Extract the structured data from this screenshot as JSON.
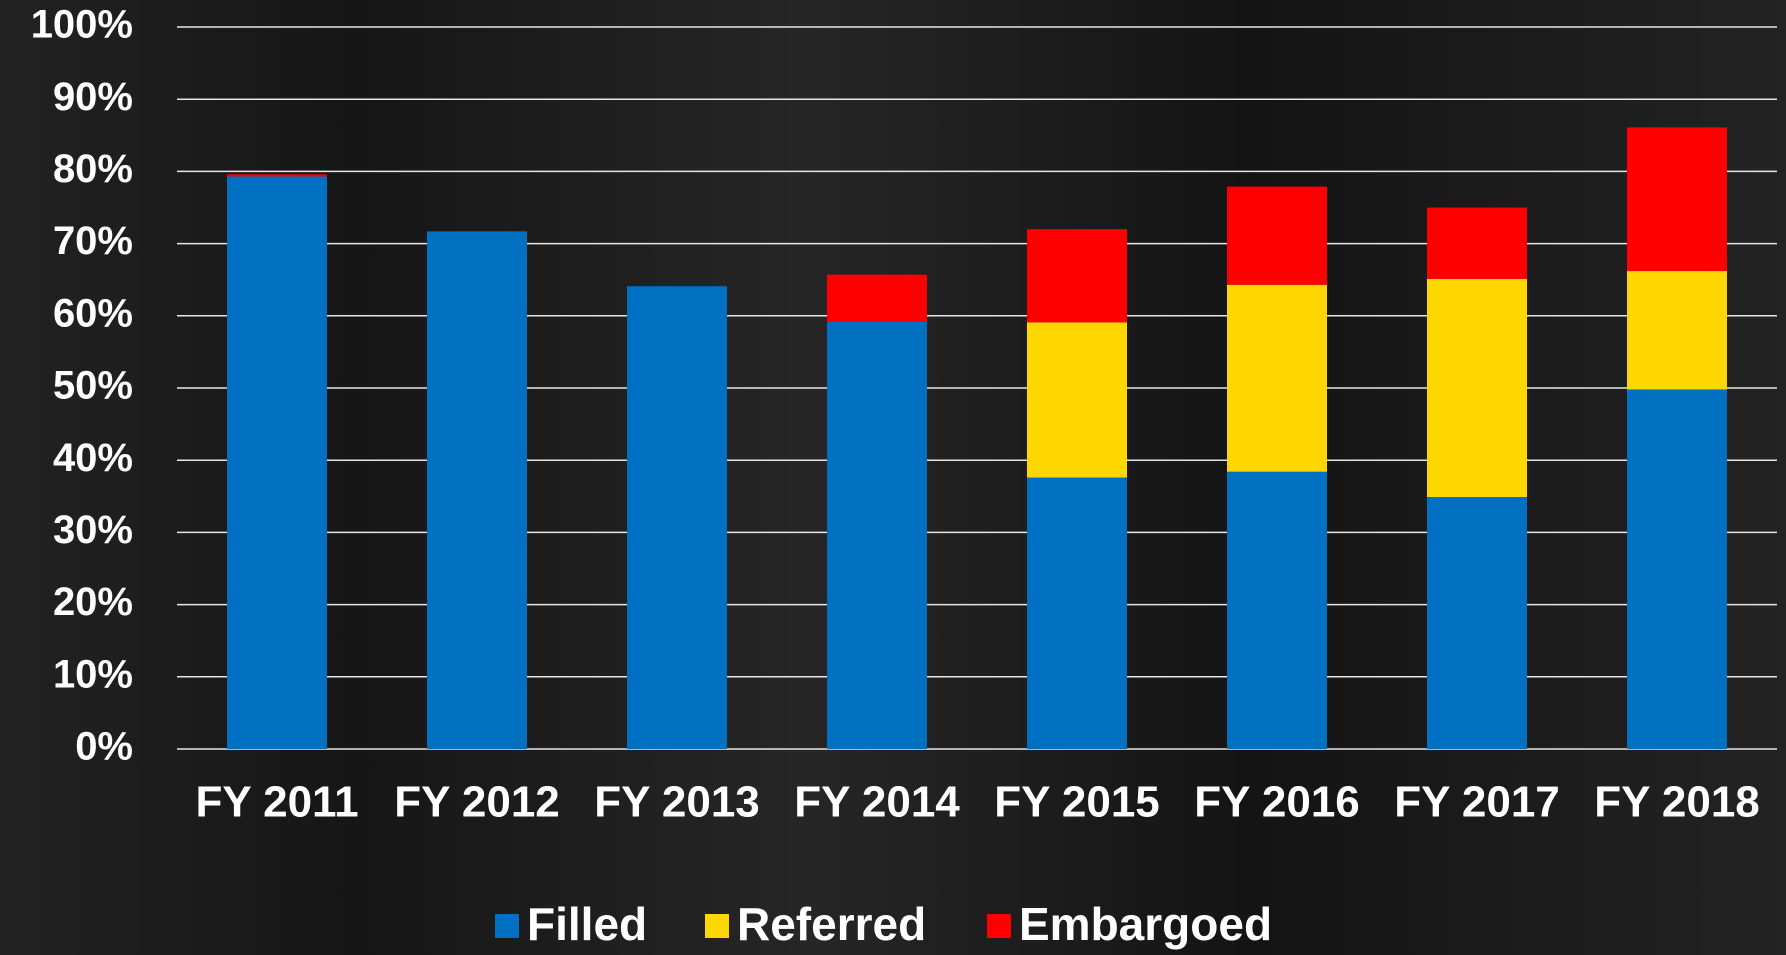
{
  "chart_data": {
    "type": "stacked_bar",
    "categories": [
      "FY 2011",
      "FY 2012",
      "FY 2013",
      "FY 2014",
      "FY 2015",
      "FY 2016",
      "FY 2017",
      "FY 2018"
    ],
    "series": [
      {
        "name": "Filled",
        "color": "#0070c0",
        "values": [
          79.3,
          71.7,
          64.1,
          59.2,
          37.6,
          38.4,
          34.9,
          49.8
        ]
      },
      {
        "name": "Referred",
        "color": "#ffd700",
        "values": [
          0,
          0,
          0,
          0,
          21.5,
          25.9,
          30.2,
          16.4
        ]
      },
      {
        "name": "Embargoed",
        "color": "#ff0000",
        "values": [
          0.3,
          0,
          0,
          6.5,
          12.9,
          13.6,
          9.9,
          19.9
        ]
      }
    ],
    "ylim": [
      0,
      100
    ],
    "yticks": [
      {
        "value": 0,
        "label": "0%"
      },
      {
        "value": 10,
        "label": "10%"
      },
      {
        "value": 20,
        "label": "20%"
      },
      {
        "value": 30,
        "label": "30%"
      },
      {
        "value": 40,
        "label": "40%"
      },
      {
        "value": 50,
        "label": "50%"
      },
      {
        "value": 60,
        "label": "60%"
      },
      {
        "value": 70,
        "label": "70%"
      },
      {
        "value": 80,
        "label": "80%"
      },
      {
        "value": 90,
        "label": "90%"
      },
      {
        "value": 100,
        "label": "100%"
      }
    ],
    "grid": true,
    "legend": "bottom"
  }
}
